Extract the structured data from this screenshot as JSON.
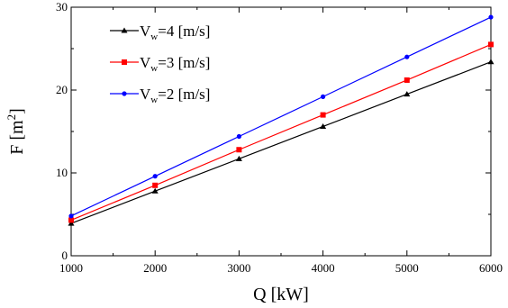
{
  "chart_data": {
    "type": "line",
    "xlabel": "Q [kW]",
    "ylabel_main": "F [m",
    "ylabel_sup": "2",
    "ylabel_close": "]",
    "xlim": [
      1000,
      6000
    ],
    "ylim": [
      0,
      30
    ],
    "x_ticks": [
      1000,
      2000,
      3000,
      4000,
      5000,
      6000
    ],
    "y_ticks": [
      0,
      10,
      20,
      30
    ],
    "grid": false,
    "legend_position": "top-left",
    "x": [
      1000,
      2000,
      3000,
      4000,
      5000,
      6000
    ],
    "series": [
      {
        "name": "V_w=4 [m/s]",
        "legend_main": "V",
        "legend_sub": "w",
        "legend_rest": "=4 [m/s]",
        "color": "#000000",
        "marker": "triangle",
        "values": [
          3.9,
          7.8,
          11.7,
          15.6,
          19.5,
          23.4
        ]
      },
      {
        "name": "V_w=3 [m/s]",
        "legend_main": "V",
        "legend_sub": "w",
        "legend_rest": "=3 [m/s]",
        "color": "#ff0000",
        "marker": "square",
        "values": [
          4.3,
          8.5,
          12.8,
          17.0,
          21.2,
          25.5
        ]
      },
      {
        "name": "V_w=2 [m/s]",
        "legend_main": "V",
        "legend_sub": "w",
        "legend_rest": "=2 [m/s]",
        "color": "#0000ff",
        "marker": "circle",
        "values": [
          4.8,
          9.6,
          14.4,
          19.2,
          24.0,
          28.8
        ]
      }
    ]
  }
}
